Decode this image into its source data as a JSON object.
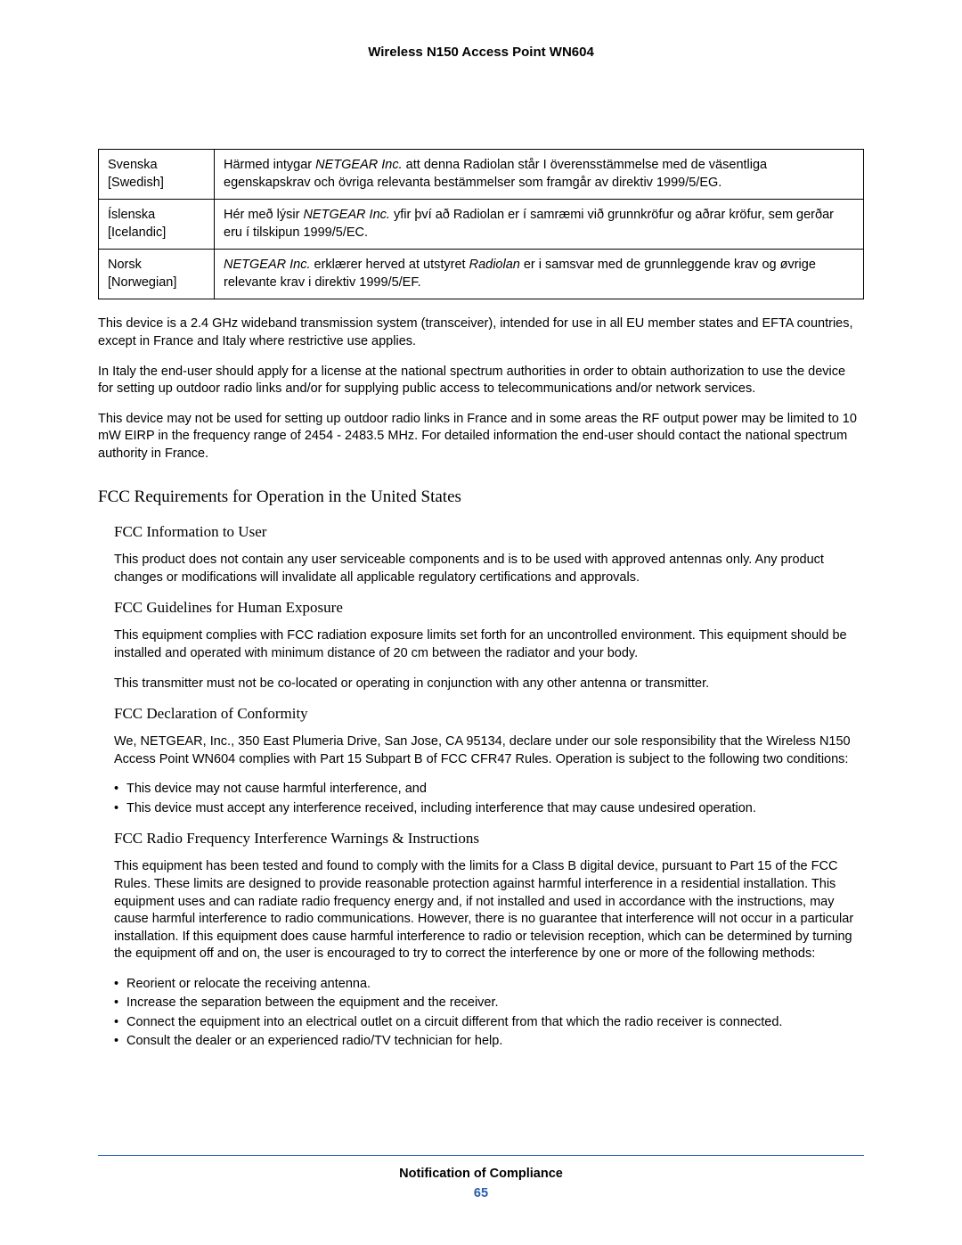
{
  "header": {
    "title": "Wireless N150 Access Point WN604"
  },
  "table": {
    "rows": [
      {
        "lang_native": "Svenska",
        "lang_english": "[Swedish]",
        "text_pre": "Härmed intygar ",
        "text_italic": "NETGEAR Inc.",
        "text_post": " att denna Radiolan står I överensstämmelse med de väsentliga egenskapskrav och övriga relevanta bestämmelser som framgår av direktiv 1999/5/EG."
      },
      {
        "lang_native": "Íslenska",
        "lang_english": "[Icelandic]",
        "text_pre": "Hér með lýsir ",
        "text_italic": "NETGEAR Inc.",
        "text_post": " yfir því að Radiolan er í samræmi við grunnkröfur og aðrar kröfur, sem gerðar eru í tilskipun 1999/5/EC."
      },
      {
        "lang_native": "Norsk",
        "lang_english": "[Norwegian]",
        "text_pre": "",
        "text_italic": "NETGEAR Inc.",
        "text_post_1": " erklærer herved at utstyret ",
        "text_italic_2": "Radiolan",
        "text_post_2": " er i samsvar med de grunnleggende krav og øvrige relevante krav i direktiv 1999/5/EF."
      }
    ]
  },
  "paragraphs": {
    "p1": "This device is a 2.4 GHz wideband transmission system (transceiver), intended for use in all EU member states and EFTA countries, except in France and Italy where restrictive use applies.",
    "p2": "In Italy the end-user should apply for a license at the national spectrum authorities in order to obtain authorization to use the device for setting up outdoor radio links and/or for supplying public access to telecommunications and/or network services.",
    "p3": "This device may not be used for setting up outdoor radio links in France and in some areas the RF output power may be limited to 10 mW EIRP in the frequency range of 2454 - 2483.5 MHz. For detailed information the end-user should contact the national spectrum authority in France."
  },
  "fcc": {
    "heading": "FCC Requirements for Operation in the United States",
    "info_user": {
      "heading": "FCC Information to User",
      "p": "This product does not contain any user serviceable components and is to be used with approved antennas only. Any product changes or modifications will invalidate all applicable regulatory certifications and approvals."
    },
    "guidelines": {
      "heading": "FCC Guidelines for Human Exposure",
      "p1": "This equipment complies with FCC radiation exposure limits set forth for an uncontrolled environment. This equipment should be installed and operated with minimum distance of 20 cm between the radiator and your body.",
      "p2": "This transmitter must not be co-located or operating in conjunction with any other antenna or transmitter."
    },
    "declaration": {
      "heading": "FCC Declaration of Conformity",
      "p": "We, NETGEAR, Inc., 350 East Plumeria Drive, San Jose, CA 95134, declare under our sole responsibility that the Wireless N150 Access Point WN604 complies with Part 15 Subpart B of FCC CFR47 Rules. Operation is subject to the following two conditions:",
      "bullets": [
        "This device may not cause harmful interference, and",
        "This device must accept any interference received, including interference that may cause undesired operation."
      ]
    },
    "rf_warnings": {
      "heading": "FCC Radio Frequency Interference Warnings & Instructions",
      "p": "This equipment has been tested and found to comply with the limits for a Class B digital device, pursuant to Part 15 of the FCC Rules. These limits are designed to provide reasonable protection against harmful interference in a residential installation. This equipment uses and can radiate radio frequency energy and, if not installed and used in accordance with the instructions, may cause harmful interference to radio communications. However, there is no guarantee that interference will not occur in a particular installation. If this equipment does cause harmful interference to radio or television reception, which can be determined by turning the equipment off and on, the user is encouraged to try to correct the interference by one or more of the following methods:",
      "bullets": [
        "Reorient or relocate the receiving antenna.",
        "Increase the separation between the equipment and the receiver.",
        "Connect the equipment into an electrical outlet on a circuit different from that which the radio receiver is connected.",
        "Consult the dealer or an experienced radio/TV technician for help."
      ]
    }
  },
  "footer": {
    "title": "Notification of Compliance",
    "page": "65"
  }
}
